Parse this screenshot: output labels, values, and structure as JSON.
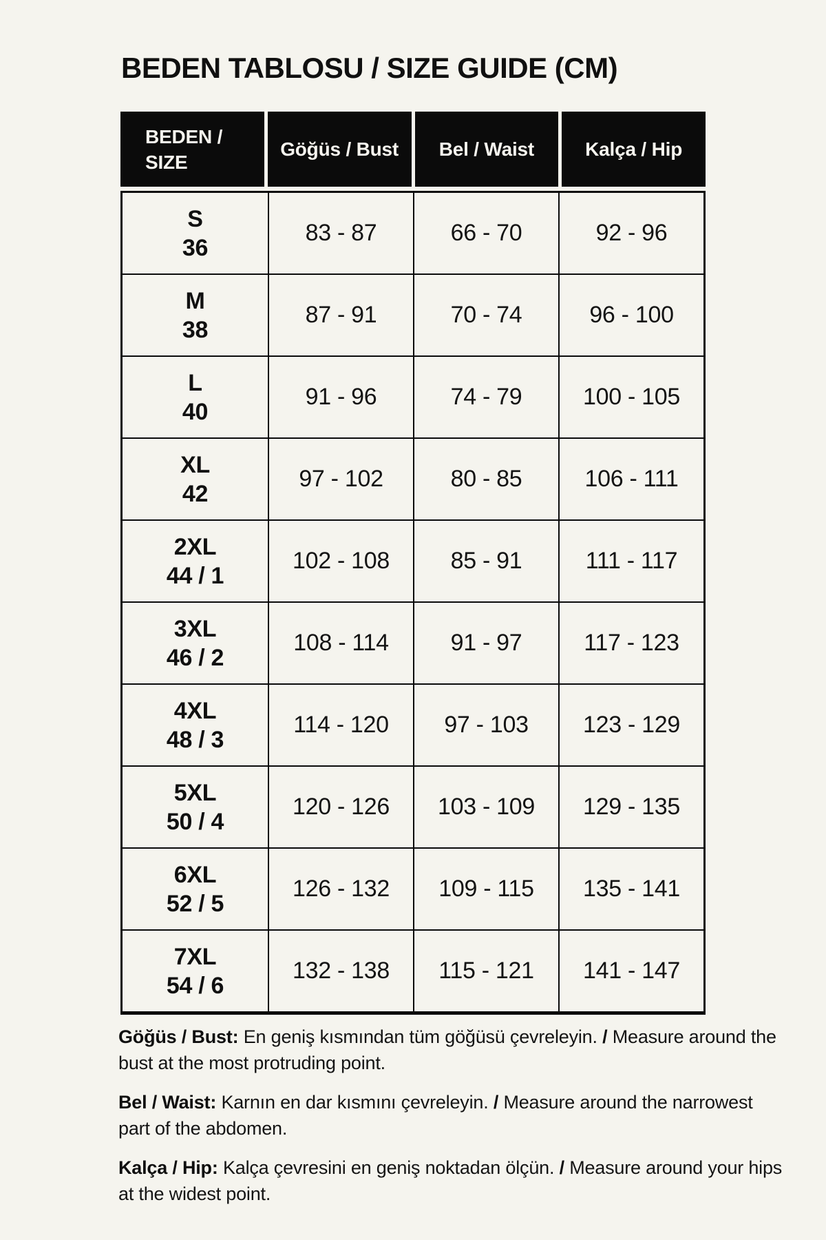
{
  "page": {
    "title": "BEDEN TABLOSU / SIZE GUIDE (CM)",
    "background_color": "#f5f4ee",
    "table_header_background": "#0b0b0b",
    "table_header_text_color": "#f6f4ee",
    "text_color": "#141414"
  },
  "table": {
    "header": {
      "size_label_line1": "BEDEN /",
      "size_label_line2": "SIZE",
      "columns": [
        "Göğüs / Bust",
        "Bel / Waist",
        "Kalça / Hip"
      ]
    },
    "rows": [
      {
        "size": "S",
        "number": "36",
        "bust": "83 - 87",
        "waist": "66 - 70",
        "hip": "92 - 96"
      },
      {
        "size": "M",
        "number": "38",
        "bust": "87 - 91",
        "waist": "70 - 74",
        "hip": "96 - 100"
      },
      {
        "size": "L",
        "number": "40",
        "bust": "91 - 96",
        "waist": "74 - 79",
        "hip": "100 - 105"
      },
      {
        "size": "XL",
        "number": "42",
        "bust": "97 - 102",
        "waist": "80 - 85",
        "hip": "106 - 111"
      },
      {
        "size": "2XL",
        "number": "44 / 1",
        "bust": "102 - 108",
        "waist": "85 - 91",
        "hip": "111 - 117"
      },
      {
        "size": "3XL",
        "number": "46 / 2",
        "bust": "108 - 114",
        "waist": "91 - 97",
        "hip": "117 - 123"
      },
      {
        "size": "4XL",
        "number": "48 / 3",
        "bust": "114 - 120",
        "waist": "97 - 103",
        "hip": "123 - 129"
      },
      {
        "size": "5XL",
        "number": "50 / 4",
        "bust": "120 - 126",
        "waist": "103 - 109",
        "hip": "129 - 135"
      },
      {
        "size": "6XL",
        "number": "52 / 5",
        "bust": "126 - 132",
        "waist": "109 - 115",
        "hip": "135 - 141"
      },
      {
        "size": "7XL",
        "number": "54 / 6",
        "bust": "132 - 138",
        "waist": "115 - 121",
        "hip": "141 - 147"
      }
    ]
  },
  "notes": [
    {
      "label": "Göğüs / Bust:",
      "turkish": "En geniş kısmından tüm göğüsü çevreleyin.",
      "separator": "/",
      "english": "Measure around the bust at the most protruding point."
    },
    {
      "label": "Bel / Waist:",
      "turkish": "Karnın en dar kısmını çevreleyin.",
      "separator": "/",
      "english": "Measure around the narrowest part of the abdomen."
    },
    {
      "label": "Kalça / Hip:",
      "turkish": "Kalça çevresini en geniş noktadan ölçün.",
      "separator": "/",
      "english": "Measure around your hips at the widest point."
    }
  ]
}
